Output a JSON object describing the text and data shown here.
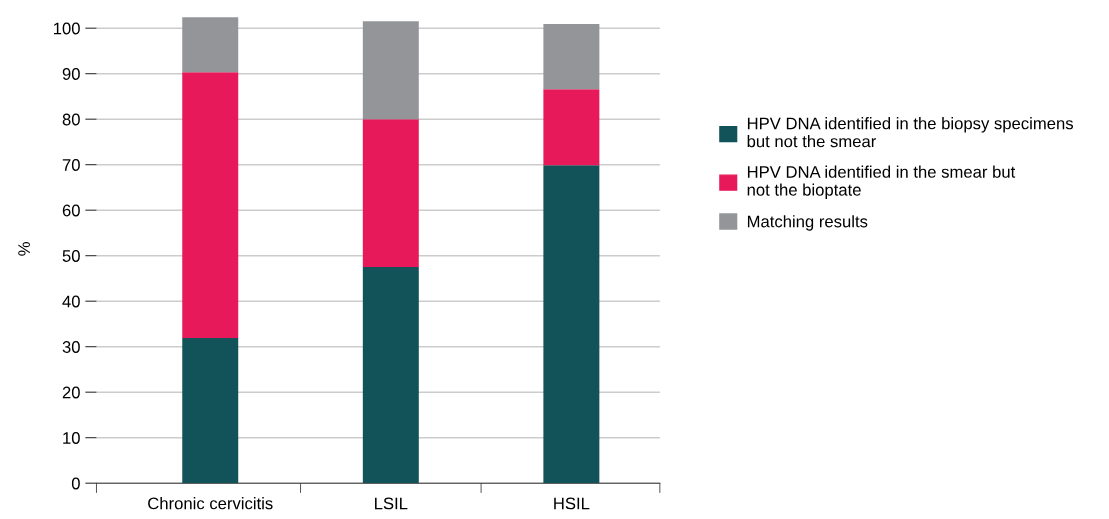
{
  "chart_data": {
    "type": "bar",
    "stacked": true,
    "ylabel": "%",
    "categories": [
      "Chronic cervicitis",
      "LSIL",
      "HSIL"
    ],
    "series": [
      {
        "name": "HPV DNA identified in the biopsy specimens\nbut not the smear",
        "color": "#115358",
        "values": [
          31.9,
          47.5,
          69.9
        ]
      },
      {
        "name": "HPV DNA identified in the smear but\nnot the bioptate",
        "color": "#e8195a",
        "values": [
          58.4,
          32.5,
          16.7
        ]
      },
      {
        "name": "Matching results",
        "color": "#939598",
        "values": [
          12.1,
          21.5,
          14.3
        ]
      }
    ],
    "ylim": [
      0,
      103
    ],
    "yticks": [
      0,
      10,
      20,
      30,
      40,
      50,
      60,
      70,
      80,
      90,
      100
    ],
    "grid": "y",
    "legend": "right"
  }
}
